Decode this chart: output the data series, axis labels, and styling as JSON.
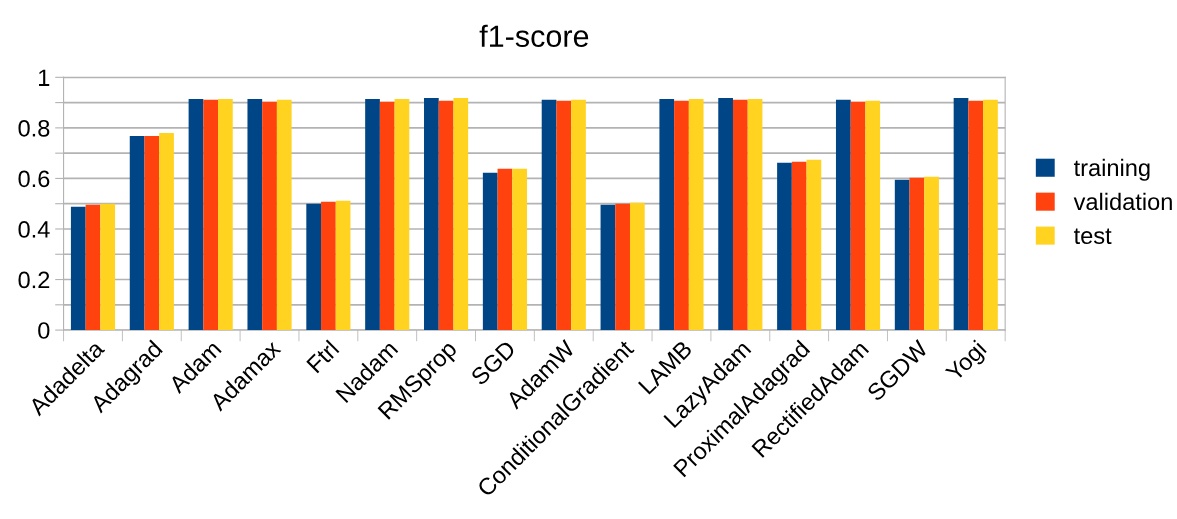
{
  "chart_data": {
    "type": "bar",
    "title": "f1-score",
    "categories": [
      "Adadelta",
      "Adagrad",
      "Adam",
      "Adamax",
      "Ftrl",
      "Nadam",
      "RMSprop",
      "SGD",
      "AdamW",
      "ConditionalGradient",
      "LAMB",
      "LazyAdam",
      "ProximalAdagrad",
      "RectifiedAdam",
      "SGDW",
      "Yogi"
    ],
    "series": [
      {
        "name": "training",
        "color": "#004586",
        "values": [
          0.488,
          0.768,
          0.914,
          0.914,
          0.5,
          0.914,
          0.918,
          0.622,
          0.911,
          0.496,
          0.914,
          0.918,
          0.662,
          0.911,
          0.595,
          0.918
        ]
      },
      {
        "name": "validation",
        "color": "#ff420e",
        "values": [
          0.496,
          0.768,
          0.911,
          0.903,
          0.508,
          0.903,
          0.907,
          0.638,
          0.907,
          0.5,
          0.907,
          0.911,
          0.666,
          0.903,
          0.603,
          0.907
        ]
      },
      {
        "name": "test",
        "color": "#ffd320",
        "values": [
          0.5,
          0.78,
          0.914,
          0.911,
          0.512,
          0.914,
          0.918,
          0.638,
          0.911,
          0.504,
          0.914,
          0.914,
          0.674,
          0.907,
          0.607,
          0.911
        ]
      }
    ],
    "ylim": [
      0,
      1
    ],
    "yticks": [
      0,
      {
        "value": 0.1,
        "label": null
      },
      0.2,
      {
        "value": 0.3,
        "label": null
      },
      0.4,
      {
        "value": 0.5,
        "label": null
      },
      0.6,
      {
        "value": 0.7,
        "label": null
      },
      0.8,
      {
        "value": 0.9,
        "label": null
      },
      1
    ],
    "grid": "y",
    "legend": "right"
  }
}
